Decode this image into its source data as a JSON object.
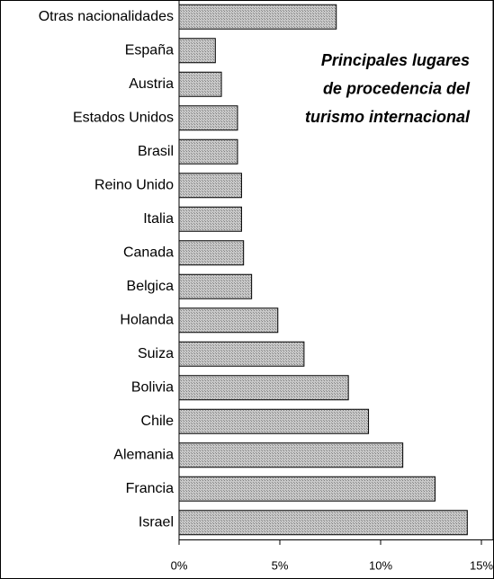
{
  "chart_data": {
    "type": "barh",
    "title": [
      "Principales lugares",
      "de procedencia del",
      "turismo internacional"
    ],
    "categories": [
      "Otras nacionalidades",
      "España",
      "Austria",
      "Estados Unidos",
      "Brasil",
      "Reino Unido",
      "Italia",
      "Canada",
      "Belgica",
      "Holanda",
      "Suiza",
      "Bolivia",
      "Chile",
      "Alemania",
      "Francia",
      "Israel"
    ],
    "values": [
      7.8,
      1.8,
      2.1,
      2.9,
      2.9,
      3.1,
      3.1,
      3.2,
      3.6,
      4.9,
      6.2,
      8.4,
      9.4,
      11.1,
      12.7,
      14.3
    ],
    "color": "#a8a8a8",
    "xlim": [
      0,
      15
    ],
    "xticks": [
      {
        "value": 0,
        "label": "0%"
      },
      {
        "value": 5,
        "label": "5%"
      },
      {
        "value": 10,
        "label": "10%"
      },
      {
        "value": 15,
        "label": "15%"
      }
    ]
  }
}
